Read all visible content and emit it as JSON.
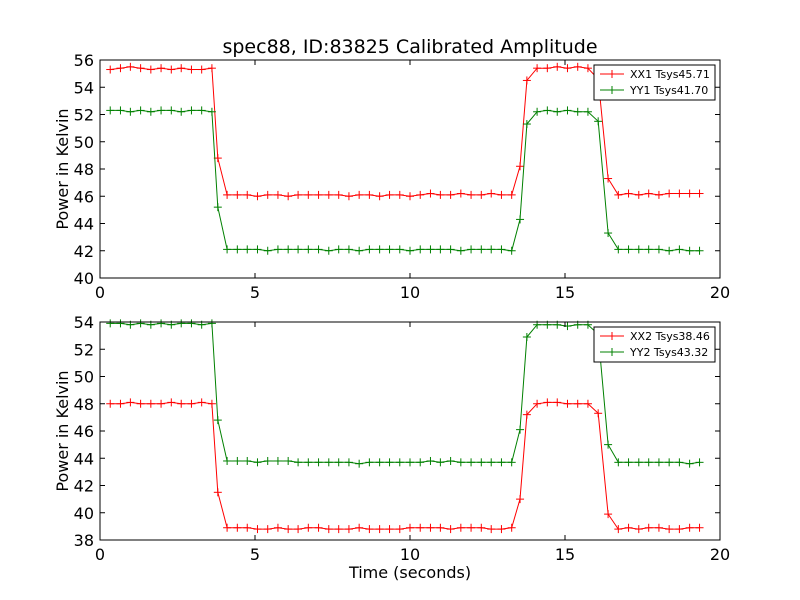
{
  "chart_data": [
    {
      "type": "line",
      "title": "spec88, ID:83825 Calibrated Amplitude",
      "xlabel": "",
      "ylabel": "Power in Kelvin",
      "xlim": [
        0,
        20
      ],
      "ylim": [
        40,
        56
      ],
      "xticks": [
        0,
        5,
        10,
        15,
        20
      ],
      "yticks": [
        40,
        42,
        44,
        46,
        48,
        50,
        52,
        54,
        56
      ],
      "grid": false,
      "legend_position": "top-right",
      "series": [
        {
          "name": "XX1 Tsys45.71",
          "color": "#ff0000",
          "x": [
            0.33,
            0.66,
            0.98,
            1.31,
            1.64,
            1.97,
            2.3,
            2.62,
            2.95,
            3.28,
            3.61,
            3.8,
            4.1,
            4.43,
            4.75,
            5.08,
            5.41,
            5.74,
            6.07,
            6.39,
            6.72,
            7.05,
            7.38,
            7.7,
            8.03,
            8.36,
            8.69,
            9.02,
            9.34,
            9.67,
            10.0,
            10.33,
            10.66,
            10.98,
            11.31,
            11.64,
            11.97,
            12.3,
            12.62,
            12.95,
            13.28,
            13.55,
            13.77,
            14.1,
            14.43,
            14.75,
            15.08,
            15.41,
            15.74,
            16.07,
            16.39,
            16.72,
            17.05,
            17.38,
            17.7,
            18.03,
            18.36,
            18.69,
            19.02,
            19.34
          ],
          "y": [
            55.3,
            55.4,
            55.5,
            55.4,
            55.3,
            55.4,
            55.3,
            55.4,
            55.3,
            55.3,
            55.4,
            48.8,
            46.1,
            46.1,
            46.1,
            46.0,
            46.1,
            46.1,
            46.0,
            46.1,
            46.1,
            46.1,
            46.1,
            46.1,
            46.0,
            46.1,
            46.1,
            46.0,
            46.1,
            46.1,
            46.0,
            46.1,
            46.2,
            46.1,
            46.1,
            46.2,
            46.1,
            46.1,
            46.2,
            46.1,
            46.1,
            48.2,
            54.5,
            55.4,
            55.4,
            55.5,
            55.4,
            55.5,
            55.4,
            54.6,
            47.3,
            46.1,
            46.2,
            46.1,
            46.2,
            46.1,
            46.2,
            46.2,
            46.2,
            46.2
          ]
        },
        {
          "name": "YY1 Tsys41.70",
          "color": "#008000",
          "x": [
            0.33,
            0.66,
            0.98,
            1.31,
            1.64,
            1.97,
            2.3,
            2.62,
            2.95,
            3.28,
            3.61,
            3.8,
            4.1,
            4.43,
            4.75,
            5.08,
            5.41,
            5.74,
            6.07,
            6.39,
            6.72,
            7.05,
            7.38,
            7.7,
            8.03,
            8.36,
            8.69,
            9.02,
            9.34,
            9.67,
            10.0,
            10.33,
            10.66,
            10.98,
            11.31,
            11.64,
            11.97,
            12.3,
            12.62,
            12.95,
            13.28,
            13.55,
            13.77,
            14.1,
            14.43,
            14.75,
            15.08,
            15.41,
            15.74,
            16.07,
            16.39,
            16.72,
            17.05,
            17.38,
            17.7,
            18.03,
            18.36,
            18.69,
            19.02,
            19.34
          ],
          "y": [
            52.3,
            52.3,
            52.2,
            52.3,
            52.2,
            52.3,
            52.3,
            52.2,
            52.3,
            52.3,
            52.2,
            45.2,
            42.1,
            42.1,
            42.1,
            42.1,
            42.0,
            42.1,
            42.1,
            42.1,
            42.1,
            42.1,
            42.0,
            42.1,
            42.1,
            42.0,
            42.1,
            42.1,
            42.1,
            42.1,
            42.0,
            42.1,
            42.1,
            42.1,
            42.1,
            42.0,
            42.1,
            42.1,
            42.1,
            42.1,
            42.0,
            44.3,
            51.3,
            52.2,
            52.3,
            52.2,
            52.3,
            52.2,
            52.2,
            51.5,
            43.3,
            42.1,
            42.1,
            42.1,
            42.1,
            42.1,
            42.0,
            42.1,
            42.0,
            42.0
          ]
        }
      ]
    },
    {
      "type": "line",
      "title": "",
      "xlabel": "Time (seconds)",
      "ylabel": "Power in Kelvin",
      "xlim": [
        0,
        20
      ],
      "ylim": [
        38,
        54
      ],
      "xticks": [
        0,
        5,
        10,
        15,
        20
      ],
      "yticks": [
        38,
        40,
        42,
        44,
        46,
        48,
        50,
        52,
        54
      ],
      "grid": false,
      "legend_position": "top-right",
      "series": [
        {
          "name": "XX2 Tsys38.46",
          "color": "#ff0000",
          "x": [
            0.33,
            0.66,
            0.98,
            1.31,
            1.64,
            1.97,
            2.3,
            2.62,
            2.95,
            3.28,
            3.61,
            3.8,
            4.1,
            4.43,
            4.75,
            5.08,
            5.41,
            5.74,
            6.07,
            6.39,
            6.72,
            7.05,
            7.38,
            7.7,
            8.03,
            8.36,
            8.69,
            9.02,
            9.34,
            9.67,
            10.0,
            10.33,
            10.66,
            10.98,
            11.31,
            11.64,
            11.97,
            12.3,
            12.62,
            12.95,
            13.28,
            13.55,
            13.77,
            14.1,
            14.43,
            14.75,
            15.08,
            15.41,
            15.74,
            16.07,
            16.39,
            16.72,
            17.05,
            17.38,
            17.7,
            18.03,
            18.36,
            18.69,
            19.02,
            19.34
          ],
          "y": [
            48.0,
            48.0,
            48.1,
            48.0,
            48.0,
            48.0,
            48.1,
            48.0,
            48.0,
            48.1,
            48.0,
            41.5,
            38.9,
            38.9,
            38.9,
            38.8,
            38.8,
            38.9,
            38.8,
            38.8,
            38.9,
            38.9,
            38.8,
            38.8,
            38.8,
            38.9,
            38.8,
            38.8,
            38.8,
            38.8,
            38.9,
            38.9,
            38.9,
            38.9,
            38.8,
            38.9,
            38.9,
            38.9,
            38.8,
            38.8,
            38.9,
            41.0,
            47.2,
            48.0,
            48.1,
            48.1,
            48.0,
            48.0,
            48.0,
            47.3,
            39.9,
            38.8,
            38.9,
            38.8,
            38.9,
            38.9,
            38.8,
            38.8,
            38.9,
            38.9
          ]
        },
        {
          "name": "YY2 Tsys43.32",
          "color": "#008000",
          "x": [
            0.33,
            0.66,
            0.98,
            1.31,
            1.64,
            1.97,
            2.3,
            2.62,
            2.95,
            3.28,
            3.61,
            3.8,
            4.1,
            4.43,
            4.75,
            5.08,
            5.41,
            5.74,
            6.07,
            6.39,
            6.72,
            7.05,
            7.38,
            7.7,
            8.03,
            8.36,
            8.69,
            9.02,
            9.34,
            9.67,
            10.0,
            10.33,
            10.66,
            10.98,
            11.31,
            11.64,
            11.97,
            12.3,
            12.62,
            12.95,
            13.28,
            13.55,
            13.77,
            14.1,
            14.43,
            14.75,
            15.08,
            15.41,
            15.74,
            16.07,
            16.39,
            16.72,
            17.05,
            17.38,
            17.7,
            18.03,
            18.36,
            18.69,
            19.02,
            19.34
          ],
          "y": [
            53.9,
            53.9,
            53.8,
            53.9,
            53.8,
            53.9,
            53.8,
            53.9,
            53.9,
            53.8,
            53.9,
            46.8,
            43.8,
            43.8,
            43.8,
            43.7,
            43.8,
            43.8,
            43.8,
            43.7,
            43.7,
            43.7,
            43.7,
            43.7,
            43.7,
            43.6,
            43.7,
            43.7,
            43.7,
            43.7,
            43.7,
            43.7,
            43.8,
            43.7,
            43.8,
            43.7,
            43.7,
            43.7,
            43.7,
            43.7,
            43.7,
            46.1,
            52.9,
            53.8,
            53.8,
            53.8,
            53.7,
            53.8,
            53.8,
            53.1,
            45.0,
            43.7,
            43.7,
            43.7,
            43.7,
            43.7,
            43.7,
            43.7,
            43.6,
            43.7
          ]
        }
      ]
    }
  ]
}
